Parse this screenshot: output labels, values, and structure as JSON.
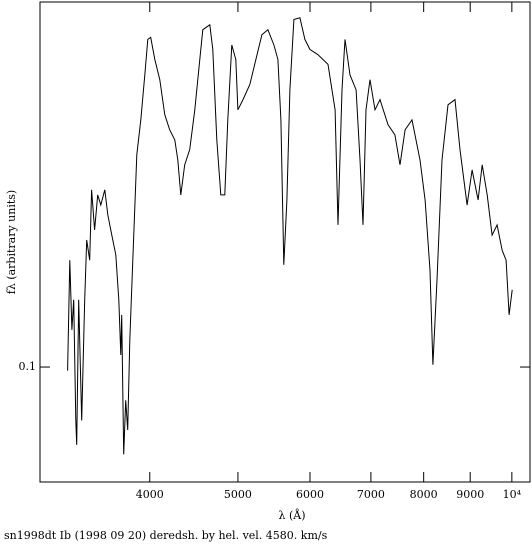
{
  "chart_data": {
    "type": "line",
    "x_label": "λ (Å)",
    "y_label": "fλ (arbitrary units)",
    "caption": "sn1998dt Ib (1998 09 20) deredsh. by hel. vel.  4580. km/s",
    "xscale": "log",
    "yscale": "log",
    "xlim": [
      3030,
      10470
    ],
    "ylim": [
      0.037,
      2.35
    ],
    "xticks": [
      4000,
      5000,
      6000,
      7000,
      8000,
      9000,
      {
        "value": 10000,
        "label": "10⁴"
      }
    ],
    "yticks": [
      0.1
    ],
    "color": "#000000",
    "x": [
      3249,
      3267,
      3285,
      3300,
      3317,
      3325,
      3342,
      3367,
      3393,
      3410,
      3436,
      3453,
      3479,
      3506,
      3534,
      3570,
      3597,
      3634,
      3671,
      3699,
      3717,
      3726,
      3745,
      3764,
      3783,
      3803,
      3832,
      3871,
      3910,
      3950,
      3980,
      4010,
      4051,
      4103,
      4155,
      4207,
      4262,
      4294,
      4327,
      4370,
      4426,
      4483,
      4540,
      4575,
      4656,
      4692,
      4740,
      4788,
      4837,
      4873,
      4923,
      4973,
      4999,
      5064,
      5153,
      5233,
      5313,
      5394,
      5476,
      5532,
      5574,
      5616,
      5659,
      5703,
      5761,
      5849,
      5923,
      5998,
      6122,
      6280,
      6394,
      6441,
      6506,
      6556,
      6640,
      6742,
      6810,
      6862,
      6914,
      6984,
      7073,
      7163,
      7309,
      7439,
      7535,
      7632,
      7768,
      7927,
      8029,
      8129,
      8190,
      8274,
      8380,
      8509,
      8661,
      8771,
      8930,
      9042,
      9182,
      9277,
      9395,
      9513,
      9634,
      9757,
      9856,
      9931,
      10008
    ],
    "values": [
      0.097,
      0.252,
      0.138,
      0.179,
      0.063,
      0.051,
      0.179,
      0.063,
      0.179,
      0.3,
      0.252,
      0.463,
      0.327,
      0.443,
      0.406,
      0.463,
      0.373,
      0.313,
      0.264,
      0.179,
      0.111,
      0.157,
      0.047,
      0.075,
      0.058,
      0.126,
      0.252,
      0.627,
      0.848,
      1.25,
      1.7,
      1.73,
      1.43,
      1.2,
      0.886,
      0.778,
      0.713,
      0.6,
      0.443,
      0.575,
      0.655,
      0.925,
      1.43,
      1.85,
      1.93,
      1.56,
      0.713,
      0.443,
      0.443,
      0.848,
      1.62,
      1.43,
      0.925,
      1.01,
      1.15,
      1.43,
      1.77,
      1.85,
      1.62,
      1.43,
      0.848,
      0.242,
      0.424,
      1.1,
      2.02,
      2.05,
      1.7,
      1.56,
      1.49,
      1.37,
      0.925,
      0.342,
      1.1,
      1.7,
      1.25,
      1.1,
      0.6,
      0.342,
      0.925,
      1.2,
      0.925,
      1.01,
      0.813,
      0.745,
      0.575,
      0.778,
      0.848,
      0.6,
      0.424,
      0.231,
      0.102,
      0.212,
      0.6,
      0.966,
      1.01,
      0.655,
      0.406,
      0.55,
      0.424,
      0.575,
      0.443,
      0.313,
      0.342,
      0.275,
      0.252,
      0.157,
      0.195
    ]
  }
}
